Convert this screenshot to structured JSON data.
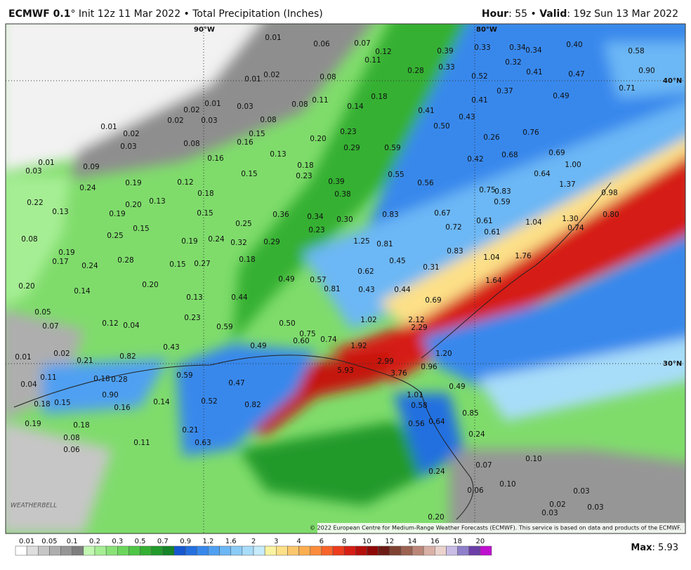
{
  "header": {
    "model": "ECMWF 0.1",
    "description": "° Init 12z 11 Mar 2022 • Total Precipitation (Inches)",
    "hour_label": "Hour",
    "hour_value": ": 55 • ",
    "valid_label": "Valid",
    "valid_value": ": 19z Sun 13 Mar 2022"
  },
  "map": {
    "lon_labels": [
      "90°W",
      "80°W"
    ],
    "lat_labels": [
      "40°N",
      "30°N"
    ],
    "logo": "WEATHERBELL",
    "copyright": "© 2022 European Centre for Medium-Range Weather Forecasts (ECMWF). This service is based on data and products of the ECMWF.",
    "labels": [
      "0.01",
      "0.06",
      "0.07",
      "0.12",
      "0.11",
      "0.39",
      "0.33",
      "0.34",
      "0.34",
      "0.40",
      "0.58",
      "0.02",
      "0.01",
      "0.08",
      "0.28",
      "0.33",
      "0.32",
      "0.41",
      "0.47",
      "0.52",
      "0.90",
      "0.71",
      "0.18",
      "0.08",
      "0.11",
      "0.14",
      "0.37",
      "0.41",
      "0.49",
      "0.02",
      "0.01",
      "0.03",
      "0.02",
      "0.03",
      "0.08",
      "0.41",
      "0.43",
      "0.50",
      "0.01",
      "0.02",
      "0.03",
      "0.08",
      "0.15",
      "0.16",
      "0.23",
      "0.20",
      "0.76",
      "0.26",
      "0.29",
      "0.59",
      "0.13",
      "0.68",
      "0.69",
      "0.42",
      "0.01",
      "0.03",
      "0.16",
      "0.09",
      "0.15",
      "0.18",
      "0.23",
      "0.55",
      "1.00",
      "0.64",
      "0.39",
      "0.56",
      "0.75",
      "0.83",
      "1.37",
      "0.98",
      "0.24",
      "0.19",
      "0.12",
      "0.38",
      "0.59",
      "0.18",
      "0.22",
      "0.20",
      "0.13",
      "0.13",
      "0.19",
      "0.15",
      "0.36",
      "0.34",
      "0.30",
      "0.83",
      "0.67",
      "0.61",
      "1.04",
      "1.30",
      "0.80",
      "0.25",
      "0.15",
      "0.25",
      "0.23",
      "0.72",
      "0.61",
      "0.74",
      "0.08",
      "0.19",
      "0.24",
      "0.32",
      "0.29",
      "1.25",
      "0.81",
      "0.83",
      "0.19",
      "0.17",
      "0.28",
      "0.18",
      "1.04",
      "1.76",
      "0.45",
      "0.24",
      "0.15",
      "0.27",
      "0.31",
      "0.62",
      "0.49",
      "0.57",
      "1.64",
      "0.20",
      "0.20",
      "0.81",
      "0.43",
      "0.44",
      "0.14",
      "0.13",
      "0.44",
      "0.69",
      "0.05",
      "0.23",
      "1.02",
      "2.12",
      "0.07",
      "0.12",
      "0.04",
      "0.59",
      "0.50",
      "0.75",
      "2.29",
      "0.60",
      "0.74",
      "0.49",
      "0.43",
      "1.92",
      "1.20",
      "0.02",
      "0.01",
      "0.82",
      "0.21",
      "2.99",
      "5.93",
      "3.76",
      "0.96",
      "0.11",
      "0.18",
      "0.28",
      "0.59",
      "0.47",
      "0.49",
      "0.04",
      "0.90",
      "1.01",
      "0.18",
      "0.15",
      "0.14",
      "0.52",
      "0.82",
      "0.58",
      "0.16",
      "0.85",
      "0.19",
      "0.18",
      "0.56",
      "0.64",
      "0.21",
      "0.24",
      "0.08",
      "0.11",
      "0.63",
      "0.06",
      "0.10",
      "0.07",
      "0.24",
      "0.10",
      "0.06",
      "0.03",
      "0.02",
      "0.03",
      "0.03",
      "0.20"
    ]
  },
  "colorbar": {
    "ticks": [
      0.01,
      0.05,
      0.1,
      0.2,
      0.3,
      0.5,
      0.7,
      0.9,
      1.2,
      1.6,
      2,
      3,
      4,
      6,
      8,
      10,
      12,
      14,
      16,
      18,
      20
    ],
    "colors": [
      "#ffffff",
      "#dedede",
      "#c6c6c6",
      "#aeaeae",
      "#969696",
      "#7e7e7e",
      "#c2f7b2",
      "#a6ee94",
      "#89e277",
      "#6cd65c",
      "#4fc645",
      "#35b032",
      "#229a2c",
      "#158528",
      "#1558d0",
      "#2470e0",
      "#3888ec",
      "#50a0f2",
      "#6cb7f5",
      "#8acbf7",
      "#a8ddf9",
      "#c6ebfa",
      "#faf3a2",
      "#fde088",
      "#fdc86c",
      "#fcae50",
      "#fb8c3c",
      "#f8642a",
      "#ee3c1e",
      "#d61e14",
      "#b5100c",
      "#8e0a08",
      "#6c1c14",
      "#7e4232",
      "#9c6252",
      "#bb8678",
      "#d9b0a6",
      "#ebd3cd",
      "#c9bde6",
      "#8f7fcb",
      "#6c3fa8",
      "#c010d0"
    ]
  },
  "max": {
    "label": "Max",
    "value": ": 5.93"
  }
}
